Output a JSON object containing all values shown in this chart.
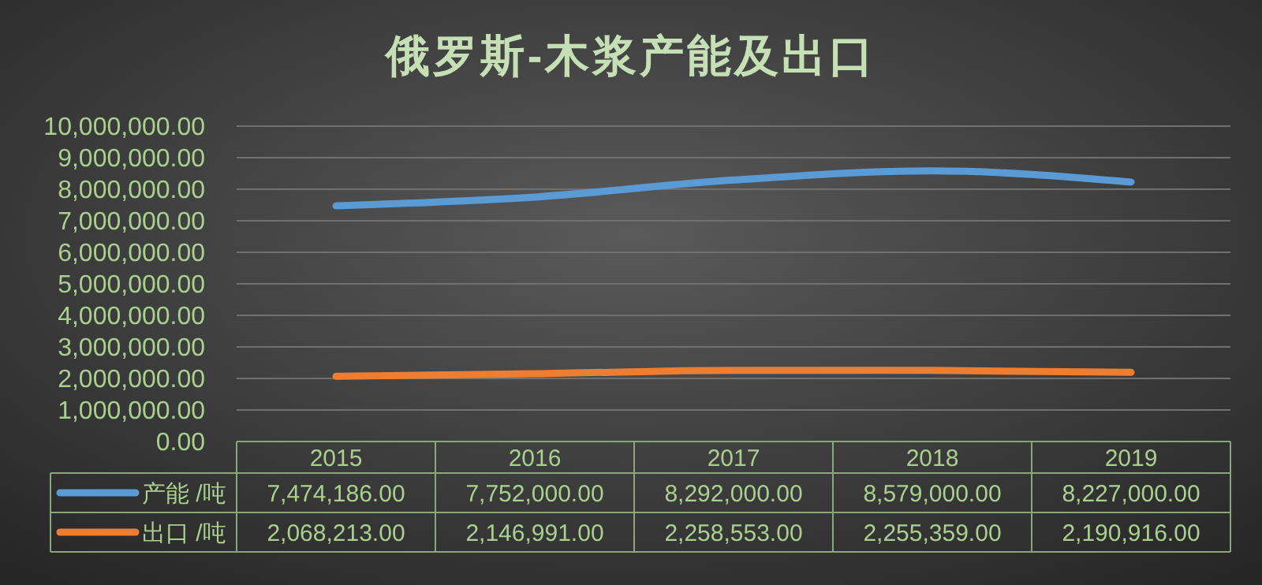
{
  "chart_data": {
    "type": "line",
    "title": "俄罗斯-木浆产能及出口",
    "categories": [
      "2015",
      "2016",
      "2017",
      "2018",
      "2019"
    ],
    "ylim": [
      0,
      10000000
    ],
    "yticks": [
      {
        "value": 0,
        "label": "0.00"
      },
      {
        "value": 1000000,
        "label": "1,000,000.00"
      },
      {
        "value": 2000000,
        "label": "2,000,000.00"
      },
      {
        "value": 3000000,
        "label": "3,000,000.00"
      },
      {
        "value": 4000000,
        "label": "4,000,000.00"
      },
      {
        "value": 5000000,
        "label": "5,000,000.00"
      },
      {
        "value": 6000000,
        "label": "6,000,000.00"
      },
      {
        "value": 7000000,
        "label": "7,000,000.00"
      },
      {
        "value": 8000000,
        "label": "8,000,000.00"
      },
      {
        "value": 9000000,
        "label": "9,000,000.00"
      },
      {
        "value": 10000000,
        "label": "10,000,000.00"
      }
    ],
    "grid": "y",
    "legend": "bottom left",
    "marker": "none",
    "line_style": "solid",
    "series": [
      {
        "name": "产能 /吨",
        "color": "#5b9bd5",
        "values": [
          7474186,
          7752000,
          8292000,
          8579000,
          8227000
        ],
        "value_labels": [
          "7,474,186.00",
          "7,752,000.00",
          "8,292,000.00",
          "8,579,000.00",
          "8,227,000.00"
        ]
      },
      {
        "name": "出口 /吨",
        "color": "#ed7d31",
        "values": [
          2068213,
          2146991,
          2258553,
          2255359,
          2190916
        ],
        "value_labels": [
          "2,068,213.00",
          "2,146,991.00",
          "2,258,553.00",
          "2,255,359.00",
          "2,190,916.00"
        ]
      }
    ]
  }
}
